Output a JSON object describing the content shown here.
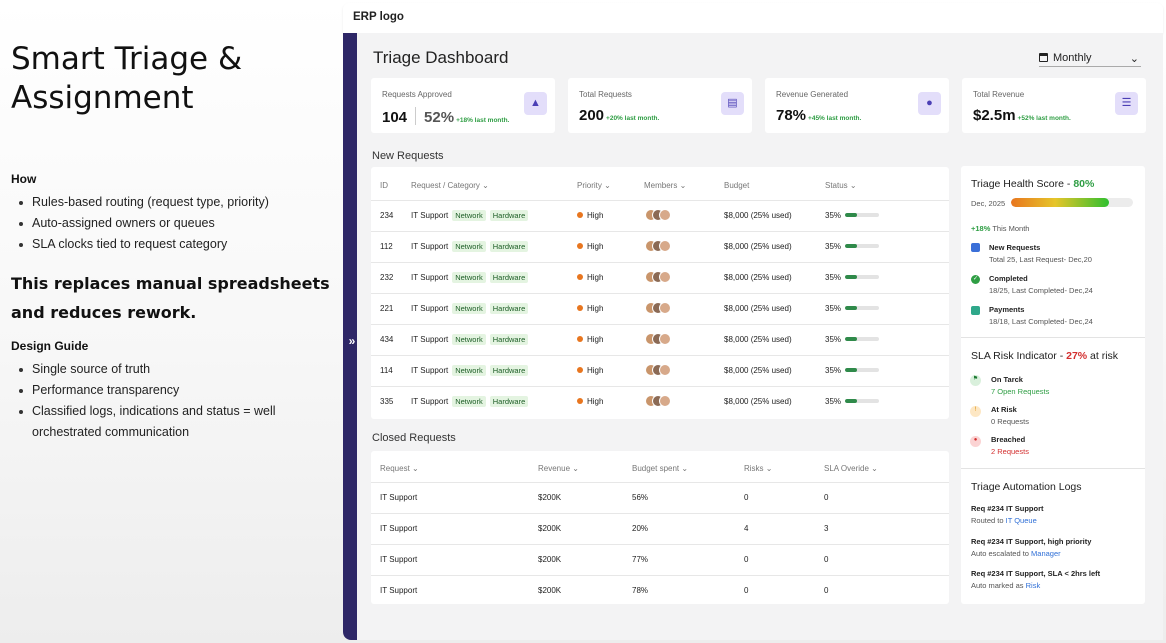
{
  "slide": {
    "title_line1": "Smart Triage &",
    "title_line2": "Assignment",
    "how_label": "How",
    "how_items": [
      "Rules-based routing (request type, priority)",
      "Auto-assigned owners or queues",
      "SLA clocks tied to request category"
    ],
    "statement_line1": "This replaces manual spreadsheets",
    "statement_line2": "and reduces rework.",
    "guide_label": "Design Guide",
    "guide_items": [
      "Single source of truth",
      "Performance transparency",
      "Classified logs, indications and status = well",
      "orchestrated communication"
    ]
  },
  "app": {
    "logo": "ERP logo",
    "rail_toggle": "»",
    "title": "Triage Dashboard",
    "period": "Monthly"
  },
  "kpis": [
    {
      "title": "Requests Approved",
      "value": "104",
      "value2": "52%",
      "delta": "+18% last month.",
      "icon": "thumbs-up-icon"
    },
    {
      "title": "Total Requests",
      "value": "200",
      "delta": "+20% last month.",
      "icon": "clipboard-icon"
    },
    {
      "title": "Revenue Generated",
      "value": "78%",
      "delta": "+45% last month.",
      "icon": "hand-coin-icon"
    },
    {
      "title": "Total Revenue",
      "value": "$2.5m",
      "delta": "+52% last month.",
      "icon": "coins-stack-icon"
    }
  ],
  "new_requests": {
    "label": "New Requests",
    "headers": [
      "ID",
      "Request / Category",
      "Priority",
      "Members",
      "Budget",
      "Status"
    ],
    "rows": [
      {
        "id": "234",
        "category": "IT Support",
        "tags": [
          "Network",
          "Hardware"
        ],
        "priority": "High",
        "budget": "$8,000 (25% used)",
        "status": "35%",
        "progress": 0.35
      },
      {
        "id": "112",
        "category": "IT Support",
        "tags": [
          "Network",
          "Hardware"
        ],
        "priority": "High",
        "budget": "$8,000 (25% used)",
        "status": "35%",
        "progress": 0.35
      },
      {
        "id": "232",
        "category": "IT Support",
        "tags": [
          "Network",
          "Hardware"
        ],
        "priority": "High",
        "budget": "$8,000 (25% used)",
        "status": "35%",
        "progress": 0.35
      },
      {
        "id": "221",
        "category": "IT Support",
        "tags": [
          "Network",
          "Hardware"
        ],
        "priority": "High",
        "budget": "$8,000 (25% used)",
        "status": "35%",
        "progress": 0.35
      },
      {
        "id": "434",
        "category": "IT Support",
        "tags": [
          "Network",
          "Hardware"
        ],
        "priority": "High",
        "budget": "$8,000 (25% used)",
        "status": "35%",
        "progress": 0.35
      },
      {
        "id": "114",
        "category": "IT Support",
        "tags": [
          "Network",
          "Hardware"
        ],
        "priority": "High",
        "budget": "$8,000 (25% used)",
        "status": "35%",
        "progress": 0.35
      },
      {
        "id": "335",
        "category": "IT Support",
        "tags": [
          "Network",
          "Hardware"
        ],
        "priority": "High",
        "budget": "$8,000 (25% used)",
        "status": "35%",
        "progress": 0.35
      }
    ]
  },
  "closed_requests": {
    "label": "Closed Requests",
    "headers": [
      "Request",
      "Revenue",
      "Budget spent",
      "Risks",
      "SLA Overide"
    ],
    "rows": [
      {
        "request": "IT Support",
        "revenue": "$200K",
        "budget_spent": "56%",
        "risks": "0",
        "sla": "0"
      },
      {
        "request": "IT Support",
        "revenue": "$200K",
        "budget_spent": "20%",
        "risks": "4",
        "sla": "3"
      },
      {
        "request": "IT Support",
        "revenue": "$200K",
        "budget_spent": "77%",
        "risks": "0",
        "sla": "0"
      },
      {
        "request": "IT Support",
        "revenue": "$200K",
        "budget_spent": "78%",
        "risks": "0",
        "sla": "0"
      }
    ]
  },
  "health": {
    "title": "Triage Health Score - ",
    "score": "80%",
    "score_fraction": 0.8,
    "date": "Dec, 2025",
    "trend_value": "+18%",
    "trend_label": " This Month",
    "items": [
      {
        "title": "New Requests",
        "sub": "Total 25, Last Request- Dec,20",
        "icon": "inbox-icon"
      },
      {
        "title": "Completed",
        "sub": "18/25, Last Completed- Dec,24",
        "icon": "check-circle-icon"
      },
      {
        "title": "Payments",
        "sub": "18/18, Last Completed- Dec,24",
        "icon": "card-icon"
      }
    ]
  },
  "sla": {
    "title": "SLA Risk Indicator - ",
    "value": "27%",
    "suffix": " at risk",
    "items": [
      {
        "title": "On Tarck",
        "sub": "7 Open Requests",
        "icon": "flag-icon"
      },
      {
        "title": "At Risk",
        "sub": "0 Requests",
        "icon": "warning-icon"
      },
      {
        "title": "Breached",
        "sub": "2 Requests",
        "icon": "alarm-icon"
      }
    ]
  },
  "logs": {
    "title": "Triage Automation Logs",
    "items": [
      {
        "title": "Req #234 IT Support",
        "prefix": "Routed to ",
        "link": "IT Queue"
      },
      {
        "title": "Req #234 IT Support, high priority",
        "prefix": "Auto escalated to ",
        "link": "Manager"
      },
      {
        "title": "Req #234 IT Support, SLA < 2hrs left",
        "prefix": "Auto marked as ",
        "link": "Risk"
      }
    ]
  },
  "colors": {
    "rail": "#2e2767",
    "accent": "#4b3fb5",
    "positive": "#2f9e44",
    "warning": "#e8761f",
    "danger": "#d32f2f"
  }
}
